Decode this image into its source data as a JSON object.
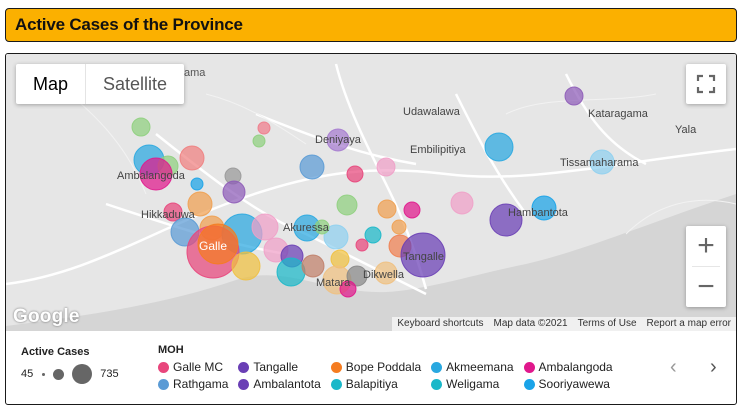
{
  "header": {
    "title": "Active Cases of the Province"
  },
  "map_controls": {
    "map_label": "Map",
    "satellite_label": "Satellite",
    "zoom_in": "+",
    "zoom_out": "−"
  },
  "map_labels": {
    "ama": "ama",
    "udawalawa": "Udawalawa",
    "kataragama": "Kataragama",
    "yala": "Yala",
    "deniyaya": "Deniyaya",
    "embilipitiya": "Embilipitiya",
    "tissamaharama": "Tissamaharama",
    "ambalangoda": "Ambalangoda",
    "hikkaduwa": "Hikkaduwa",
    "hambantota": "Hambantota",
    "akuressa": "Akuressa",
    "galle": "Galle",
    "tangalle": "Tangalle",
    "dikwella": "Dikwella",
    "matara": "Matara"
  },
  "google_logo": "Google",
  "attribution": {
    "keyboard": "Keyboard shortcuts",
    "mapdata": "Map data ©2021",
    "terms": "Terms of Use",
    "report": "Report a map error"
  },
  "legend_size": {
    "title": "Active Cases",
    "min": "45",
    "max": "735"
  },
  "legend_moh": {
    "title": "MOH",
    "items": [
      {
        "label": "Galle MC",
        "color": "#e8467c"
      },
      {
        "label": "Tangalle",
        "color": "#6a3fb5"
      },
      {
        "label": "Bope Poddala",
        "color": "#f57c20"
      },
      {
        "label": "Akmeemana",
        "color": "#29a8e0"
      },
      {
        "label": "Ambalangoda",
        "color": "#e0188c"
      },
      {
        "label": "Rathgama",
        "color": "#5b9bd5"
      },
      {
        "label": "Ambalantota",
        "color": "#6a3fb5"
      },
      {
        "label": "Balapitiya",
        "color": "#1bb8c9"
      },
      {
        "label": "Weligama",
        "color": "#1bb8c9"
      },
      {
        "label": "Sooriyawewa",
        "color": "#1aa3e8"
      }
    ]
  },
  "pager": {
    "prev": "‹",
    "next": "›"
  }
}
